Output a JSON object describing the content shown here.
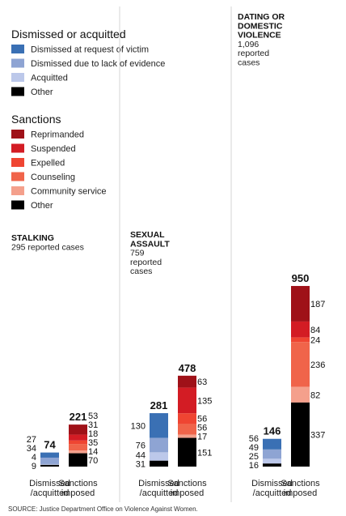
{
  "colors": {
    "dismissed_request": "#3a70b4",
    "dismissed_evidence": "#8ea4d3",
    "acquitted": "#bcc8ea",
    "other": "#000000",
    "reprimanded": "#9f1118",
    "suspended": "#d31c24",
    "expelled": "#ef4532",
    "counseling": "#f0644a",
    "community_service": "#f4a08c",
    "divider": "#d4d4d4"
  },
  "legend": {
    "dismissed": {
      "title": "Dismissed or acquitted",
      "items": [
        {
          "label": "Dismissed at request of victim",
          "color": "dismissed_request"
        },
        {
          "label": "Dismissed due to lack of evidence",
          "color": "dismissed_evidence"
        },
        {
          "label": "Acquitted",
          "color": "acquitted"
        },
        {
          "label": "Other",
          "color": "other"
        }
      ]
    },
    "sanctions": {
      "title": "Sanctions",
      "items": [
        {
          "label": "Reprimanded",
          "color": "reprimanded"
        },
        {
          "label": "Suspended",
          "color": "suspended"
        },
        {
          "label": "Expelled",
          "color": "expelled"
        },
        {
          "label": "Counseling",
          "color": "counseling"
        },
        {
          "label": "Community service",
          "color": "community_service"
        },
        {
          "label": "Other",
          "color": "other"
        }
      ]
    }
  },
  "chart_data": {
    "type": "bar",
    "stacked": true,
    "source": "SOURCE: Justice Department Office on Violence Against Women.",
    "panels": [
      {
        "title_lines": [
          "STALKING"
        ],
        "subtitle_lines": [
          "295 reported cases"
        ],
        "reported_cases": 295,
        "categories": [
          {
            "label_lines": [
              "Dismissed",
              "/acquitted"
            ],
            "total": 74,
            "segments": [
              {
                "name": "Dismissed at request of victim",
                "value": 27,
                "color": "dismissed_request"
              },
              {
                "name": "Dismissed due to lack of evidence",
                "value": 34,
                "color": "dismissed_evidence"
              },
              {
                "name": "Acquitted",
                "value": 4,
                "color": "acquitted"
              },
              {
                "name": "Other",
                "value": 9,
                "color": "other"
              }
            ]
          },
          {
            "label_lines": [
              "Sanctions",
              "imposed"
            ],
            "total": 221,
            "segments": [
              {
                "name": "Reprimanded",
                "value": 53,
                "color": "reprimanded"
              },
              {
                "name": "Suspended",
                "value": 31,
                "color": "suspended"
              },
              {
                "name": "Expelled",
                "value": 18,
                "color": "expelled"
              },
              {
                "name": "Counseling",
                "value": 35,
                "color": "counseling"
              },
              {
                "name": "Community service",
                "value": 14,
                "color": "community_service"
              },
              {
                "name": "Other",
                "value": 70,
                "color": "other"
              }
            ]
          }
        ]
      },
      {
        "title_lines": [
          "SEXUAL",
          "ASSAULT"
        ],
        "subtitle_lines": [
          "759",
          "reported",
          "cases"
        ],
        "reported_cases": 759,
        "categories": [
          {
            "label_lines": [
              "Dismissed",
              "/acquitted"
            ],
            "total": 281,
            "segments": [
              {
                "name": "Dismissed at request of victim",
                "value": 130,
                "color": "dismissed_request"
              },
              {
                "name": "Dismissed due to lack of evidence",
                "value": 76,
                "color": "dismissed_evidence"
              },
              {
                "name": "Acquitted",
                "value": 44,
                "color": "acquitted"
              },
              {
                "name": "Other",
                "value": 31,
                "color": "other"
              }
            ]
          },
          {
            "label_lines": [
              "Sanctions",
              "imposed"
            ],
            "total": 478,
            "segments": [
              {
                "name": "Reprimanded",
                "value": 63,
                "color": "reprimanded"
              },
              {
                "name": "Suspended",
                "value": 135,
                "color": "suspended"
              },
              {
                "name": "Expelled",
                "value": 56,
                "color": "expelled"
              },
              {
                "name": "Counseling",
                "value": 56,
                "color": "counseling"
              },
              {
                "name": "Community service",
                "value": 17,
                "color": "community_service"
              },
              {
                "name": "Other",
                "value": 151,
                "color": "other"
              }
            ]
          }
        ]
      },
      {
        "title_lines": [
          "DATING OR",
          "DOMESTIC",
          "VIOLENCE"
        ],
        "subtitle_lines": [
          "1,096",
          "reported",
          "cases"
        ],
        "reported_cases": 1096,
        "categories": [
          {
            "label_lines": [
              "Dismissed",
              "/acquitted"
            ],
            "total": 146,
            "segments": [
              {
                "name": "Dismissed at request of victim",
                "value": 56,
                "color": "dismissed_request"
              },
              {
                "name": "Dismissed due to lack of evidence",
                "value": 49,
                "color": "dismissed_evidence"
              },
              {
                "name": "Acquitted",
                "value": 25,
                "color": "acquitted"
              },
              {
                "name": "Other",
                "value": 16,
                "color": "other"
              }
            ]
          },
          {
            "label_lines": [
              "Sanctions",
              "imposed"
            ],
            "total": 950,
            "segments": [
              {
                "name": "Reprimanded",
                "value": 187,
                "color": "reprimanded"
              },
              {
                "name": "Suspended",
                "value": 84,
                "color": "suspended"
              },
              {
                "name": "Expelled",
                "value": 24,
                "color": "expelled"
              },
              {
                "name": "Counseling",
                "value": 236,
                "color": "counseling"
              },
              {
                "name": "Community service",
                "value": 82,
                "color": "community_service"
              },
              {
                "name": "Other",
                "value": 337,
                "color": "other"
              }
            ]
          }
        ]
      }
    ]
  }
}
